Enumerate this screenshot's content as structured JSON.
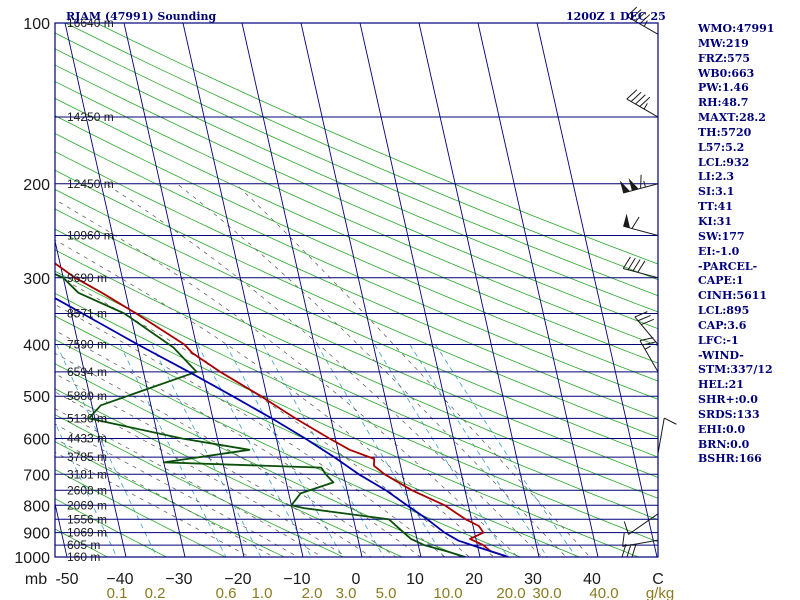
{
  "header": {
    "station": "RJAM (47991) Sounding",
    "time": "1200Z  1 DEC 25"
  },
  "indices": [
    {
      "label": "WMO",
      "value": "47991"
    },
    {
      "label": "MW",
      "value": "219"
    },
    {
      "label": "FRZ",
      "value": "575"
    },
    {
      "label": "WB0",
      "value": "663"
    },
    {
      "label": "PW",
      "value": "1.46"
    },
    {
      "label": "RH",
      "value": "48.7"
    },
    {
      "label": "MAXT",
      "value": "28.2"
    },
    {
      "label": "TH",
      "value": "5720"
    },
    {
      "label": "L57",
      "value": "5.2"
    },
    {
      "label": "LCL",
      "value": "932"
    },
    {
      "label": "LI",
      "value": "2.3"
    },
    {
      "label": "SI",
      "value": "3.1"
    },
    {
      "label": "TT",
      "value": "41"
    },
    {
      "label": "KI",
      "value": "31"
    },
    {
      "label": "SW",
      "value": "177"
    },
    {
      "label": "EI",
      "value": "-1.0"
    },
    {
      "label": "",
      "value": "-PARCEL-"
    },
    {
      "label": "CAPE",
      "value": "1"
    },
    {
      "label": "CINH",
      "value": "5611"
    },
    {
      "label": "LCL",
      "value": "895"
    },
    {
      "label": "CAP",
      "value": "3.6"
    },
    {
      "label": "LFC",
      "value": "-1"
    },
    {
      "label": "",
      "value": "-WIND-"
    },
    {
      "label": "STM",
      "value": "337/12"
    },
    {
      "label": "HEL",
      "value": "21"
    },
    {
      "label": "SHR+",
      "value": "0.0"
    },
    {
      "label": "SRDS",
      "value": "133"
    },
    {
      "label": "EHI",
      "value": "0.0"
    },
    {
      "label": "BRN",
      "value": "0.0"
    },
    {
      "label": "BSHR",
      "value": "166"
    }
  ],
  "colors": {
    "frame": "#00007a",
    "isobar": "#00007a",
    "isotherm": "#00007a",
    "dry_adiabat": "#2aa82a",
    "moist_adiabat": "#555555",
    "mixing_ratio": "#3aa0d0",
    "temperature": "#aa0000",
    "dewpoint": "#0a500a",
    "parcel": "#0000aa",
    "wind": "#1a1a1a",
    "mixing_label": "#8a7a20"
  },
  "chart_data": {
    "type": "line",
    "title": "RJAM (47991) Sounding 1200Z 1 DEC 25",
    "xlabel": "Temperature (C)",
    "ylabel": "mb",
    "temperature_axis": {
      "tick_values": [
        -50,
        -40,
        -30,
        -20,
        -10,
        0,
        10,
        20,
        30,
        40
      ],
      "tick_labels": [
        "-50",
        "−40",
        "−30",
        "−20",
        "−10",
        "0",
        "10",
        "20",
        "30",
        "40"
      ],
      "end_label": "C",
      "range": [
        -50,
        50
      ]
    },
    "pressure_axis": {
      "ticks": [
        100,
        200,
        300,
        400,
        500,
        600,
        700,
        800,
        900,
        1000
      ],
      "range": [
        100,
        1000
      ],
      "unit_label": "mb"
    },
    "height_labels": [
      {
        "p": 100,
        "text": "16640 m"
      },
      {
        "p": 150,
        "text": "14250 m"
      },
      {
        "p": 200,
        "text": "12450 m"
      },
      {
        "p": 250,
        "text": "10960 m"
      },
      {
        "p": 300,
        "text": "9690 m"
      },
      {
        "p": 350,
        "text": "8571 m"
      },
      {
        "p": 400,
        "text": "7590 m"
      },
      {
        "p": 450,
        "text": "6594 m"
      },
      {
        "p": 500,
        "text": "5880 m"
      },
      {
        "p": 550,
        "text": "5130 m"
      },
      {
        "p": 600,
        "text": "4433 m"
      },
      {
        "p": 650,
        "text": "3785 m"
      },
      {
        "p": 700,
        "text": "3181 m"
      },
      {
        "p": 750,
        "text": "2608 m"
      },
      {
        "p": 800,
        "text": "2069 m"
      },
      {
        "p": 850,
        "text": "1556 m"
      },
      {
        "p": 900,
        "text": "1069 m"
      },
      {
        "p": 950,
        "text": "605 m"
      },
      {
        "p": 1000,
        "text": "160 m"
      }
    ],
    "mixing_ratio_labels": [
      "0.1",
      "0.2",
      "0.6",
      "1.0",
      "2.0",
      "3.0",
      "5.0",
      "10.0",
      "20.0",
      "30.0",
      "40.0"
    ],
    "mixing_ratio_unit": "g/kg",
    "series": [
      {
        "name": "Temperature",
        "points": [
          {
            "p": 1000,
            "t": 24.8
          },
          {
            "p": 975,
            "t": 22.0
          },
          {
            "p": 950,
            "t": 21.0
          },
          {
            "p": 925,
            "t": 19.0
          },
          {
            "p": 900,
            "t": 21.5
          },
          {
            "p": 875,
            "t": 21.0
          },
          {
            "p": 850,
            "t": 19.0
          },
          {
            "p": 825,
            "t": 17.5
          },
          {
            "p": 800,
            "t": 16.0
          },
          {
            "p": 750,
            "t": 11.0
          },
          {
            "p": 700,
            "t": 7.0
          },
          {
            "p": 675,
            "t": 5.5
          },
          {
            "p": 655,
            "t": 5.8
          },
          {
            "p": 630,
            "t": 2.0
          },
          {
            "p": 600,
            "t": -1.0
          },
          {
            "p": 550,
            "t": -6.0
          },
          {
            "p": 500,
            "t": -11.0
          },
          {
            "p": 450,
            "t": -17.0
          },
          {
            "p": 415,
            "t": -21.0
          },
          {
            "p": 400,
            "t": -22.0
          },
          {
            "p": 350,
            "t": -29.0
          },
          {
            "p": 320,
            "t": -34.0
          },
          {
            "p": 300,
            "t": -38.0
          },
          {
            "p": 275,
            "t": -42.0
          },
          {
            "p": 250,
            "t": -45.5
          },
          {
            "p": 200,
            "t": -56.5
          },
          {
            "p": 170,
            "t": -63.0
          },
          {
            "p": 150,
            "t": -68.5
          },
          {
            "p": 130,
            "t": -72.5
          },
          {
            "p": 110,
            "t": -77.0
          },
          {
            "p": 100,
            "t": -80.0
          }
        ]
      },
      {
        "name": "Dewpoint",
        "points": [
          {
            "p": 1000,
            "t": 17.5
          },
          {
            "p": 975,
            "t": 14.5
          },
          {
            "p": 950,
            "t": 11.0
          },
          {
            "p": 925,
            "t": 9.0
          },
          {
            "p": 900,
            "t": 8.0
          },
          {
            "p": 850,
            "t": 6.0
          },
          {
            "p": 810,
            "t": -8.0
          },
          {
            "p": 800,
            "t": -10.0
          },
          {
            "p": 760,
            "t": -8.0
          },
          {
            "p": 725,
            "t": -2.0
          },
          {
            "p": 700,
            "t": -3.0
          },
          {
            "p": 680,
            "t": -3.5
          },
          {
            "p": 665,
            "t": -30.0
          },
          {
            "p": 630,
            "t": -15.0
          },
          {
            "p": 600,
            "t": -26.0
          },
          {
            "p": 550,
            "t": -41.0
          },
          {
            "p": 520,
            "t": -38.5
          },
          {
            "p": 450,
            "t": -21.0
          },
          {
            "p": 405,
            "t": -24.0
          },
          {
            "p": 350,
            "t": -31.0
          },
          {
            "p": 320,
            "t": -38.0
          },
          {
            "p": 300,
            "t": -40.0
          },
          {
            "p": 275,
            "t": -47.0
          },
          {
            "p": 250,
            "t": -71.0
          }
        ]
      },
      {
        "name": "Parcel",
        "points": [
          {
            "p": 1000,
            "t": 24.8
          },
          {
            "p": 960,
            "t": 20.2
          },
          {
            "p": 932,
            "t": 17.0
          },
          {
            "p": 900,
            "t": 14.9
          },
          {
            "p": 850,
            "t": 12.5
          },
          {
            "p": 800,
            "t": 9.6
          },
          {
            "p": 750,
            "t": 6.6
          },
          {
            "p": 700,
            "t": 2.6
          },
          {
            "p": 650,
            "t": -0.9
          },
          {
            "p": 600,
            "t": -5.1
          },
          {
            "p": 550,
            "t": -10.0
          },
          {
            "p": 500,
            "t": -15.8
          },
          {
            "p": 450,
            "t": -22.3
          },
          {
            "p": 400,
            "t": -29.9
          },
          {
            "p": 350,
            "t": -38.1
          },
          {
            "p": 300,
            "t": -47.6
          },
          {
            "p": 250,
            "t": -59.0
          },
          {
            "p": 200,
            "t": -71.0
          },
          {
            "p": 150,
            "t": -85.0
          },
          {
            "p": 125,
            "t": -93.0
          }
        ]
      }
    ],
    "wind_barbs": [
      {
        "p": 105,
        "dir": 300,
        "kt": 45
      },
      {
        "p": 150,
        "dir": 300,
        "kt": 45
      },
      {
        "p": 200,
        "dir": 255,
        "kt": 115
      },
      {
        "p": 250,
        "dir": 285,
        "kt": 60
      },
      {
        "p": 300,
        "dir": 285,
        "kt": 40
      },
      {
        "p": 400,
        "dir": 320,
        "kt": 30
      },
      {
        "p": 450,
        "dir": 330,
        "kt": 25
      },
      {
        "p": 640,
        "dir": 10,
        "kt": 10
      },
      {
        "p": 830,
        "dir": 235,
        "kt": 10
      },
      {
        "p": 930,
        "dir": 260,
        "kt": 10
      },
      {
        "p": 1000,
        "dir": 270,
        "kt": 30
      }
    ]
  }
}
